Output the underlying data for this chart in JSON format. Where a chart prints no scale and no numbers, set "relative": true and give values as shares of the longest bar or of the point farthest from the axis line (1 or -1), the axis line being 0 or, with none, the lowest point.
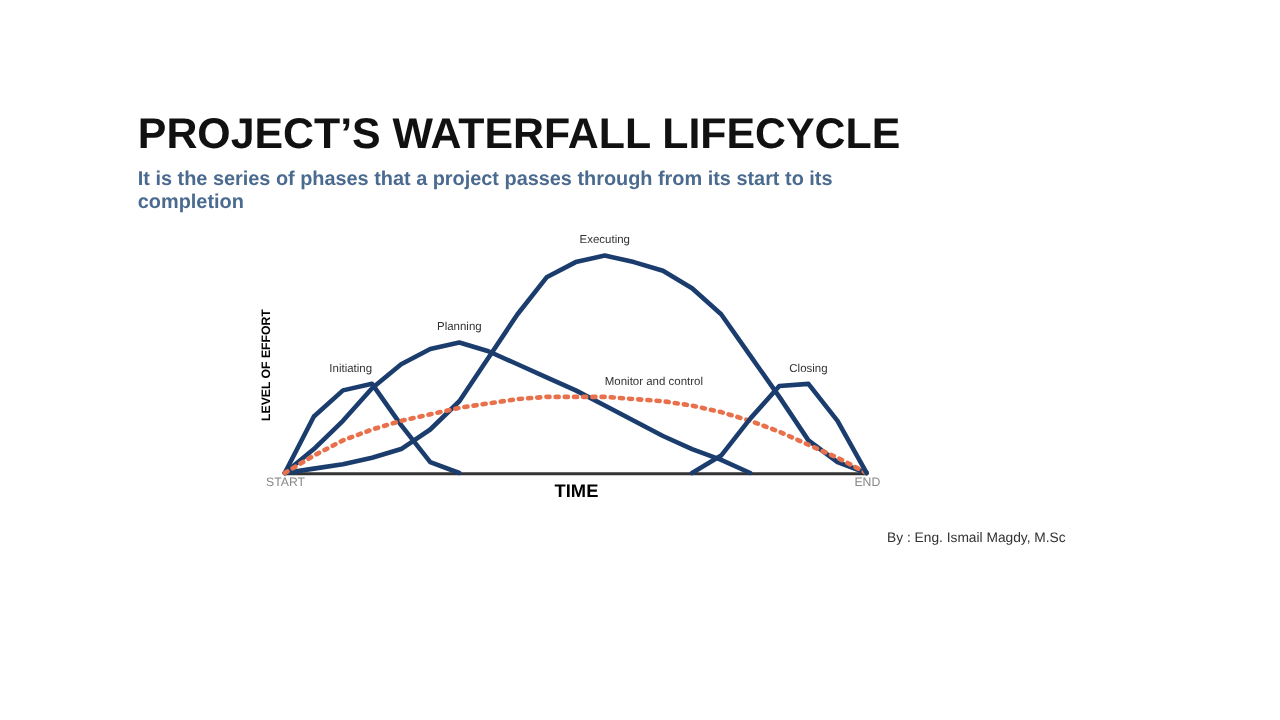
{
  "chart_data": {
    "type": "line",
    "title": "PROJECT’S WATERFALL LIFECYCLE",
    "subtitle": "It is the series of phases that a project passes through from its start to its completion",
    "xlabel": "TIME",
    "ylabel": "LEVEL OF EFFORT",
    "relative": true,
    "marker": "none",
    "categories": [
      "START",
      null,
      null,
      null,
      null,
      null,
      null,
      null,
      null,
      null,
      null,
      null,
      null,
      null,
      null,
      null,
      null,
      null,
      null,
      null,
      "END"
    ],
    "annotations": [
      "By : Eng. Ismail Magdy, M.Sc"
    ],
    "series": [
      {
        "name": "Initiating",
        "color": "#1b3d6e",
        "line_style": "solid",
        "values": [
          0,
          0.26,
          0.38,
          0.41,
          0.22,
          0.05,
          0,
          null,
          null,
          null,
          null,
          null,
          null,
          null,
          null,
          null,
          null,
          null,
          null,
          null,
          null
        ]
      },
      {
        "name": "Planning",
        "color": "#1b3d6e",
        "line_style": "solid",
        "values": [
          0,
          0.11,
          0.24,
          0.39,
          0.5,
          0.57,
          0.6,
          0.56,
          0.5,
          0.44,
          0.38,
          0.31,
          0.24,
          0.17,
          0.11,
          0.06,
          0,
          null,
          null,
          null,
          null
        ]
      },
      {
        "name": "Executing",
        "color": "#1b3d6e",
        "line_style": "solid",
        "values": [
          0,
          0.02,
          0.04,
          0.07,
          0.11,
          0.2,
          0.33,
          0.53,
          0.73,
          0.9,
          0.97,
          1,
          0.97,
          0.93,
          0.85,
          0.73,
          0.54,
          0.35,
          0.15,
          0.05,
          0
        ]
      },
      {
        "name": "Monitor and control",
        "color": "#e8704a",
        "line_style": "dotted",
        "values": [
          0,
          0.08,
          0.15,
          0.2,
          0.24,
          0.27,
          0.3,
          0.32,
          0.34,
          0.35,
          0.35,
          0.35,
          0.34,
          0.33,
          0.31,
          0.28,
          0.24,
          0.19,
          0.13,
          0.07,
          0
        ]
      },
      {
        "name": "Closing",
        "color": "#1b3d6e",
        "line_style": "solid",
        "values": [
          null,
          null,
          null,
          null,
          null,
          null,
          null,
          null,
          null,
          null,
          null,
          null,
          null,
          null,
          0,
          0.08,
          0.25,
          0.4,
          0.41,
          0.24,
          0
        ]
      }
    ]
  }
}
